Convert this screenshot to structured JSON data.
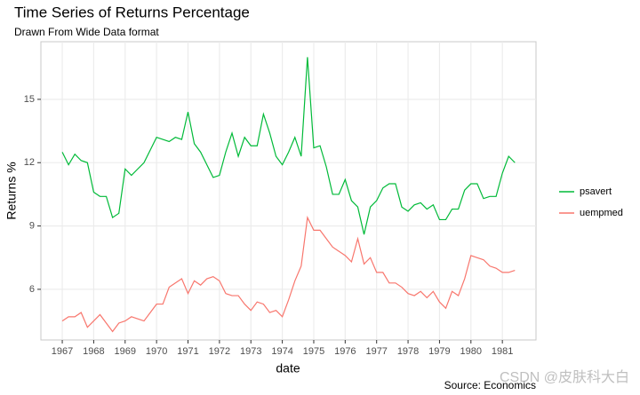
{
  "chart_data": {
    "type": "line",
    "title": "Time Series of Returns Percentage",
    "subtitle": "Drawn From Wide Data format",
    "x_label": "date",
    "y_label": "Returns %",
    "caption": "Source: Economics",
    "x": [
      1967.0,
      1967.2,
      1967.4,
      1967.6,
      1967.8,
      1968.0,
      1968.2,
      1968.4,
      1968.6,
      1968.8,
      1969.0,
      1969.2,
      1969.4,
      1969.6,
      1969.8,
      1970.0,
      1970.2,
      1970.4,
      1970.6,
      1970.8,
      1971.0,
      1971.2,
      1971.4,
      1971.6,
      1971.8,
      1972.0,
      1972.2,
      1972.4,
      1972.6,
      1972.8,
      1973.0,
      1973.2,
      1973.4,
      1973.6,
      1973.8,
      1974.0,
      1974.2,
      1974.4,
      1974.6,
      1974.8,
      1975.0,
      1975.2,
      1975.4,
      1975.6,
      1975.8,
      1976.0,
      1976.2,
      1976.4,
      1976.6,
      1976.8,
      1977.0,
      1977.2,
      1977.4,
      1977.6,
      1977.8,
      1978.0,
      1978.2,
      1978.4,
      1978.6,
      1978.8,
      1979.0,
      1979.2,
      1979.4,
      1979.6,
      1979.8,
      1980.0,
      1980.2,
      1980.4,
      1980.6,
      1980.8,
      1981.0,
      1981.2,
      1981.4
    ],
    "series": [
      {
        "name": "psavert",
        "color": "#00BA38",
        "values": [
          12.5,
          11.9,
          12.4,
          12.1,
          12.0,
          10.6,
          10.4,
          10.4,
          9.4,
          9.6,
          11.7,
          11.4,
          11.7,
          12.0,
          12.6,
          13.2,
          13.1,
          13.0,
          13.2,
          13.1,
          14.4,
          12.9,
          12.5,
          11.9,
          11.3,
          11.4,
          12.5,
          13.4,
          12.3,
          13.2,
          12.8,
          12.8,
          14.3,
          13.4,
          12.3,
          11.9,
          12.5,
          13.2,
          12.3,
          17.0,
          12.7,
          12.8,
          11.8,
          10.5,
          10.5,
          11.2,
          10.2,
          9.9,
          8.6,
          9.9,
          10.2,
          10.8,
          11.0,
          11.0,
          9.9,
          9.7,
          10.0,
          10.1,
          9.8,
          10.0,
          9.3,
          9.3,
          9.8,
          9.8,
          10.7,
          11.0,
          11.0,
          10.3,
          10.4,
          10.4,
          11.5,
          12.3,
          12.0
        ]
      },
      {
        "name": "uempmed",
        "color": "#F8766D",
        "values": [
          4.5,
          4.7,
          4.7,
          4.9,
          4.2,
          4.5,
          4.8,
          4.4,
          4.0,
          4.4,
          4.5,
          4.7,
          4.6,
          4.5,
          4.9,
          5.3,
          5.3,
          6.1,
          6.3,
          6.5,
          5.8,
          6.4,
          6.2,
          6.5,
          6.6,
          6.4,
          5.8,
          5.7,
          5.7,
          5.3,
          5.0,
          5.4,
          5.3,
          4.9,
          5.0,
          4.7,
          5.5,
          6.4,
          7.1,
          9.4,
          8.8,
          8.8,
          8.4,
          8.0,
          7.8,
          7.6,
          7.3,
          8.4,
          7.2,
          7.5,
          6.8,
          6.8,
          6.3,
          6.3,
          6.1,
          5.8,
          5.7,
          5.9,
          5.6,
          5.9,
          5.4,
          5.1,
          5.9,
          5.7,
          6.5,
          7.6,
          7.5,
          7.4,
          7.1,
          7.0,
          6.8,
          6.8,
          6.9
        ]
      }
    ],
    "xlim": [
      1966.32,
      1982.07
    ],
    "ylim": [
      3.6,
      17.73
    ],
    "xticks": [
      1967,
      1968,
      1969,
      1970,
      1971,
      1972,
      1973,
      1974,
      1975,
      1976,
      1977,
      1978,
      1979,
      1980,
      1981
    ],
    "yticks": [
      6,
      9,
      12,
      15
    ],
    "grid": true,
    "legend": "right"
  },
  "watermark": "CSDN @皮肤科大白"
}
